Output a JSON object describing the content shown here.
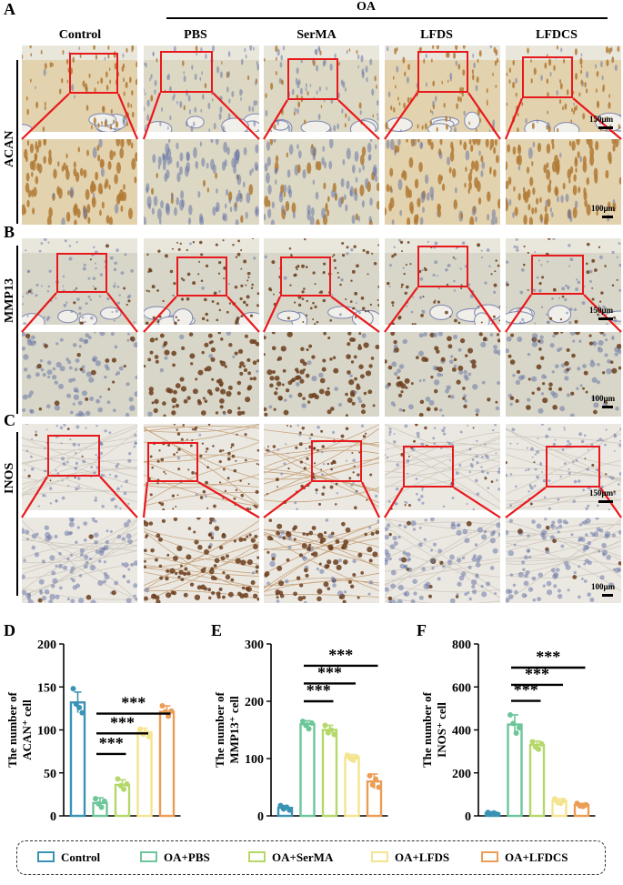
{
  "figure": {
    "panel_letters": [
      "A",
      "B",
      "C",
      "D",
      "E",
      "F"
    ],
    "group_header": "OA",
    "column_headers": [
      "Control",
      "PBS",
      "SerMA",
      "LFDS",
      "LFDCS"
    ],
    "row_labels": [
      "ACAN",
      "MMP13",
      "INOS"
    ],
    "scale_low": "150μm",
    "scale_high": "100μm",
    "colors": {
      "highlight_box": "#e8191c",
      "acan_stain": "#b9823c",
      "hematoxylin": "#6c78a8"
    }
  },
  "legend": {
    "items": [
      {
        "label": "Control",
        "color": "#3a93b5"
      },
      {
        "label": "OA+PBS",
        "color": "#6dc69a"
      },
      {
        "label": "OA+SerMA",
        "color": "#b4d86a"
      },
      {
        "label": "OA+LFDS",
        "color": "#f4e48d"
      },
      {
        "label": "OA+LFDCS",
        "color": "#eb9d56"
      }
    ]
  },
  "chart_data": [
    {
      "type": "bar",
      "panel": "D",
      "ylabel": "The number of ACAN⁺ cell",
      "ylim": [
        0,
        200
      ],
      "yticks": [
        0,
        50,
        100,
        150,
        200
      ],
      "categories": [
        "Control",
        "OA+PBS",
        "OA+SerMA",
        "OA+LFDS",
        "OA+LFDCS"
      ],
      "values": [
        132,
        15,
        36,
        97,
        121
      ],
      "errors": [
        12,
        6,
        6,
        5,
        7
      ],
      "points": [
        [
          148,
          130,
          126,
          120
        ],
        [
          20,
          14,
          10,
          17
        ],
        [
          43,
          35,
          31,
          37
        ],
        [
          101,
          95,
          97,
          92
        ],
        [
          128,
          121,
          116,
          122
        ]
      ],
      "significance": [
        {
          "from": 1,
          "to": 2,
          "label": "***"
        },
        {
          "from": 1,
          "to": 3,
          "label": "***"
        },
        {
          "from": 1,
          "to": 4,
          "label": "***"
        }
      ]
    },
    {
      "type": "bar",
      "panel": "E",
      "ylabel": "The number of MMP13⁺ cell",
      "ylim": [
        0,
        300
      ],
      "yticks": [
        0,
        100,
        200,
        300
      ],
      "categories": [
        "Control",
        "OA+PBS",
        "OA+SerMA",
        "OA+LFDS",
        "OA+LFDCS"
      ],
      "values": [
        14,
        160,
        150,
        102,
        60
      ],
      "errors": [
        4,
        6,
        8,
        5,
        13
      ],
      "points": [
        [
          18,
          12,
          15,
          10
        ],
        [
          165,
          158,
          152,
          162
        ],
        [
          158,
          145,
          150,
          142
        ],
        [
          106,
          100,
          97,
          103
        ],
        [
          70,
          54,
          64,
          50
        ]
      ],
      "significance": [
        {
          "from": 1,
          "to": 2,
          "label": "***"
        },
        {
          "from": 1,
          "to": 3,
          "label": "***"
        },
        {
          "from": 1,
          "to": 4,
          "label": "***"
        }
      ]
    },
    {
      "type": "bar",
      "panel": "F",
      "ylabel": "The number of INOS⁺ cell",
      "ylim": [
        0,
        800
      ],
      "yticks": [
        0,
        200,
        400,
        600,
        800
      ],
      "categories": [
        "Control",
        "OA+PBS",
        "OA+SerMA",
        "OA+LFDS",
        "OA+LFDCS"
      ],
      "values": [
        12,
        425,
        330,
        68,
        50
      ],
      "errors": [
        4,
        45,
        18,
        12,
        8
      ],
      "points": [
        [
          16,
          10,
          14,
          8
        ],
        [
          470,
          430,
          385,
          410
        ],
        [
          345,
          320,
          310,
          335
        ],
        [
          80,
          62,
          58,
          72
        ],
        [
          58,
          46,
          44,
          52
        ]
      ],
      "significance": [
        {
          "from": 1,
          "to": 2,
          "label": "***"
        },
        {
          "from": 1,
          "to": 3,
          "label": "***"
        },
        {
          "from": 1,
          "to": 4,
          "label": "***"
        }
      ]
    }
  ]
}
